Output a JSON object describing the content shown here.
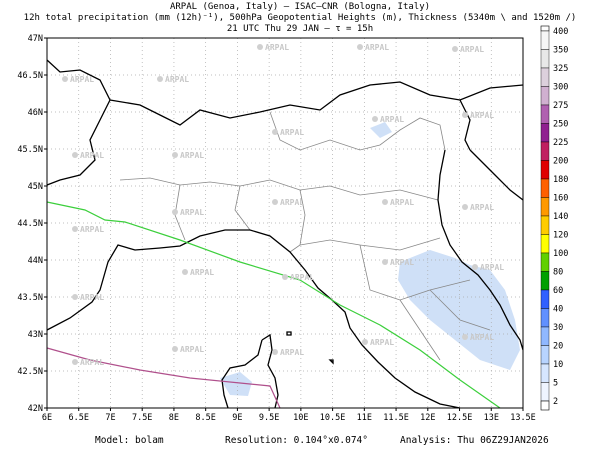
{
  "header": {
    "lines": [
      "ARPAL (Genoa, Italy)  –  ISAC–CNR (Bologna, Italy)",
      "12h total precipitation (mm (12h)⁻¹), 500hPa Geopotential Heights (m), Thickness (5340m \\ and 1520m /)",
      "21 UTC Thu 29 JAN  –  τ = 15h"
    ]
  },
  "map": {
    "lon_labels": [
      "6E",
      "6.5E",
      "7E",
      "7.5E",
      "8E",
      "8.5E",
      "9E",
      "9.5E",
      "10E",
      "10.5E",
      "11E",
      "11.5E",
      "12E",
      "12.5E",
      "13E",
      "13.5E"
    ],
    "lat_labels": [
      "42N",
      "42.5N",
      "43N",
      "43.5N",
      "44N",
      "44.5N",
      "45N",
      "45.5N",
      "46N",
      "46.5N",
      "47N"
    ],
    "watermark": "ARPAL"
  },
  "legend": {
    "labels": [
      400,
      350,
      325,
      300,
      275,
      250,
      225,
      200,
      180,
      160,
      140,
      120,
      100,
      80,
      60,
      40,
      30,
      20,
      10,
      5,
      2
    ],
    "colors": [
      "#f6f6f6",
      "#e8e8e8",
      "#dcd0dc",
      "#d0b0d0",
      "#b060b0",
      "#902090",
      "#c02060",
      "#e00000",
      "#ff6000",
      "#ff9900",
      "#ffcc00",
      "#ffff00",
      "#60d000",
      "#00a000",
      "#3060ff",
      "#6090ff",
      "#90b8ff",
      "#b8d4ff",
      "#d6e6ff",
      "#eef4ff"
    ]
  },
  "footer": {
    "model": "Model: bolam",
    "resolution": "Resolution: 0.104°x0.074°",
    "analysis": "Analysis: Thu 06Z29JAN2026"
  }
}
